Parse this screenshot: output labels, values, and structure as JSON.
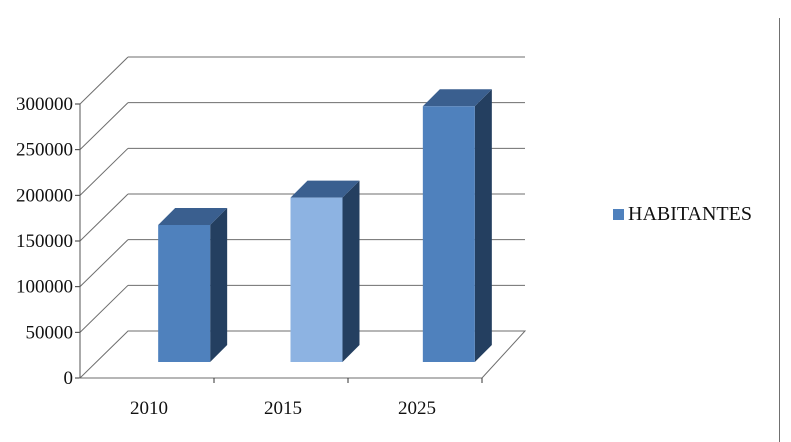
{
  "chart_data": {
    "type": "bar",
    "categories": [
      "2010",
      "2015",
      "2025"
    ],
    "series": [
      {
        "name": "HABITANTES",
        "values": [
          150000,
          180000,
          280000
        ]
      }
    ],
    "title": "",
    "xlabel": "",
    "ylabel": "",
    "ylim": [
      0,
      300000
    ],
    "yticks": [
      "0",
      "50000",
      "100000",
      "150000",
      "200000",
      "250000",
      "300000"
    ],
    "grid": true,
    "legend_position": "right",
    "style": "3d-column",
    "colors": {
      "series": "#4f81bd",
      "highlight": "#8db3e2",
      "side": "#243f60",
      "top": "#3a5f8f",
      "grid": "#6e6e6e"
    }
  },
  "legend": {
    "label": "HABITANTES"
  }
}
